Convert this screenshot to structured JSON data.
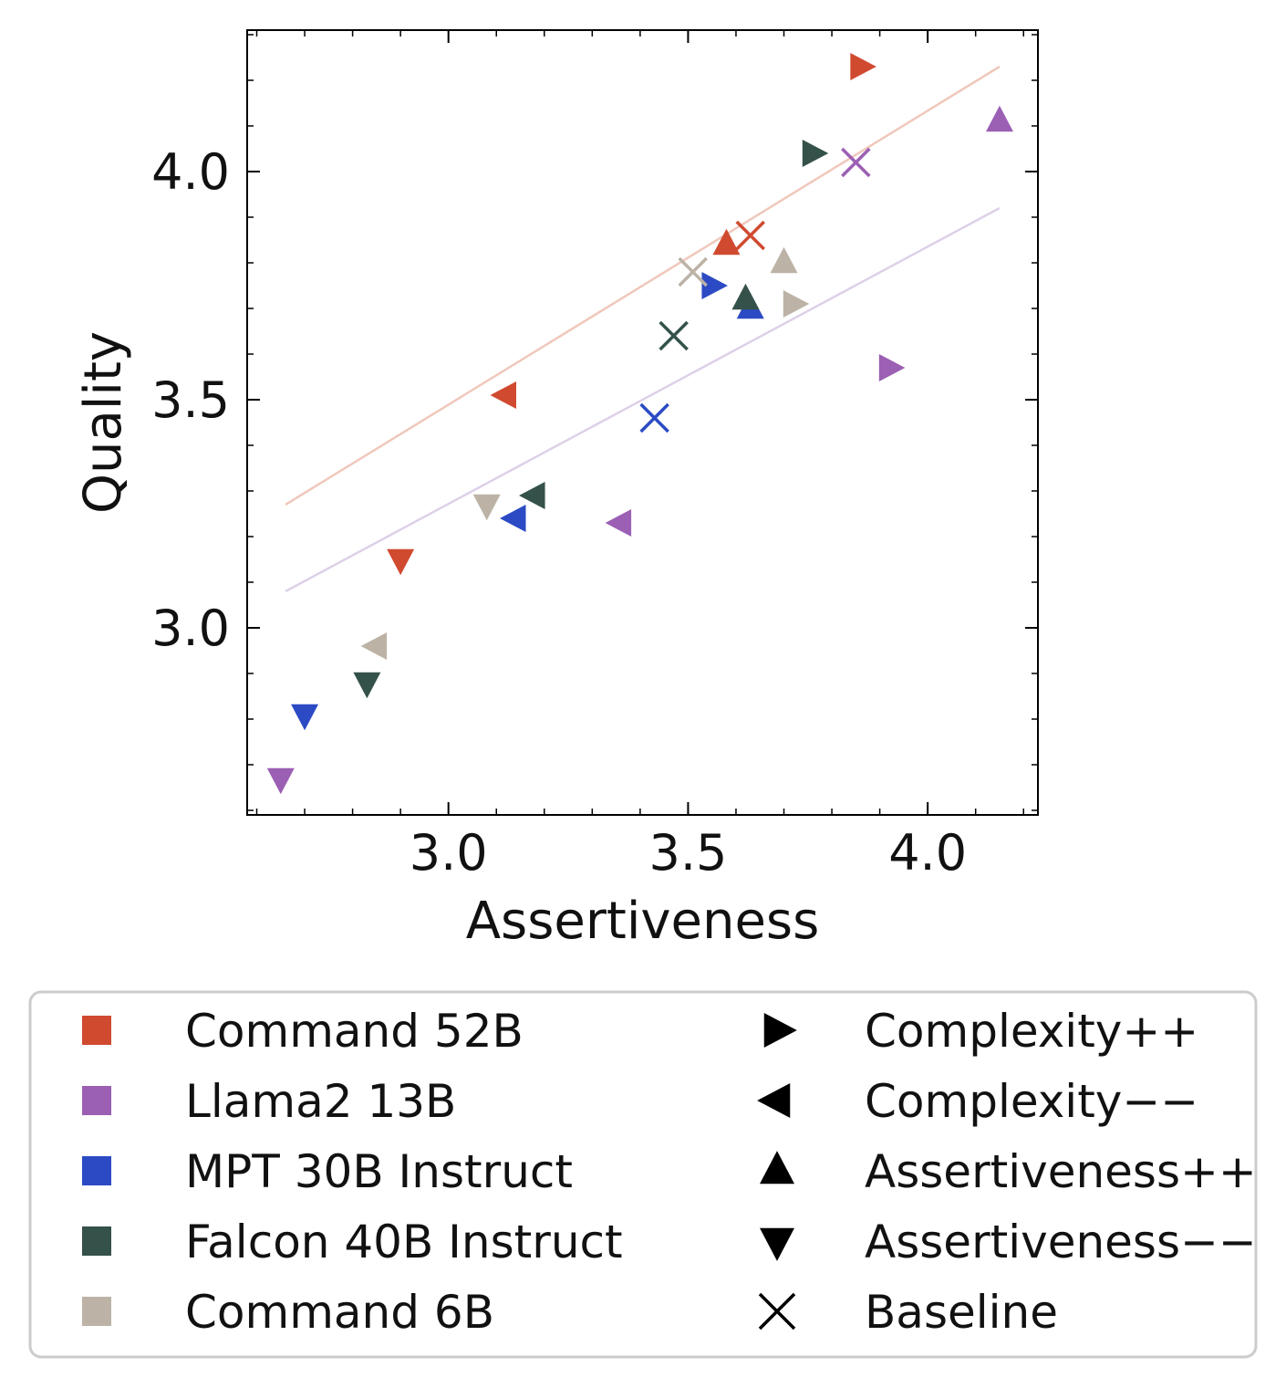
{
  "chart_data": {
    "type": "scatter",
    "xlabel": "Assertiveness",
    "ylabel": "Quality",
    "xlim": [
      2.58,
      4.23
    ],
    "ylim": [
      2.59,
      4.31
    ],
    "x_ticks": [
      3.0,
      3.5,
      4.0
    ],
    "x_tick_labels": [
      "3.0",
      "3.5",
      "4.0"
    ],
    "y_ticks": [
      3.0,
      3.5,
      4.0
    ],
    "y_tick_labels": [
      "3.0",
      "3.5",
      "4.0"
    ],
    "grid": false,
    "legend_position": "bottom",
    "models": [
      {
        "name": "Command 52B",
        "color": "#d04a30"
      },
      {
        "name": "Llama2 13B",
        "color": "#9b5fb4"
      },
      {
        "name": "MPT 30B Instruct",
        "color": "#2b4ac4"
      },
      {
        "name": "Falcon 40B Instruct",
        "color": "#34514a"
      },
      {
        "name": "Command 6B",
        "color": "#bcb3a6"
      }
    ],
    "variants": [
      {
        "name": "Complexity++",
        "marker": "triangle-right"
      },
      {
        "name": "Complexity−−",
        "marker": "triangle-left"
      },
      {
        "name": "Assertiveness++",
        "marker": "triangle-up"
      },
      {
        "name": "Assertiveness−−",
        "marker": "triangle-down"
      },
      {
        "name": "Baseline",
        "marker": "x"
      }
    ],
    "points": [
      {
        "model": 0,
        "variant": 0,
        "x": 3.86,
        "y": 4.23
      },
      {
        "model": 0,
        "variant": 1,
        "x": 3.12,
        "y": 3.51
      },
      {
        "model": 0,
        "variant": 2,
        "x": 3.58,
        "y": 3.84
      },
      {
        "model": 0,
        "variant": 3,
        "x": 2.9,
        "y": 3.15
      },
      {
        "model": 0,
        "variant": 4,
        "x": 3.63,
        "y": 3.86
      },
      {
        "model": 1,
        "variant": 0,
        "x": 3.92,
        "y": 3.57
      },
      {
        "model": 1,
        "variant": 1,
        "x": 3.36,
        "y": 3.23
      },
      {
        "model": 1,
        "variant": 2,
        "x": 4.15,
        "y": 4.11
      },
      {
        "model": 1,
        "variant": 3,
        "x": 2.65,
        "y": 2.67
      },
      {
        "model": 1,
        "variant": 4,
        "x": 3.85,
        "y": 4.02
      },
      {
        "model": 2,
        "variant": 0,
        "x": 3.55,
        "y": 3.75
      },
      {
        "model": 2,
        "variant": 1,
        "x": 3.14,
        "y": 3.24
      },
      {
        "model": 2,
        "variant": 2,
        "x": 3.63,
        "y": 3.7
      },
      {
        "model": 2,
        "variant": 3,
        "x": 2.7,
        "y": 2.81
      },
      {
        "model": 2,
        "variant": 4,
        "x": 3.43,
        "y": 3.46
      },
      {
        "model": 3,
        "variant": 0,
        "x": 3.76,
        "y": 4.04
      },
      {
        "model": 3,
        "variant": 1,
        "x": 3.18,
        "y": 3.29
      },
      {
        "model": 3,
        "variant": 2,
        "x": 3.62,
        "y": 3.72
      },
      {
        "model": 3,
        "variant": 3,
        "x": 2.83,
        "y": 2.88
      },
      {
        "model": 3,
        "variant": 4,
        "x": 3.47,
        "y": 3.64
      },
      {
        "model": 4,
        "variant": 0,
        "x": 3.72,
        "y": 3.71
      },
      {
        "model": 4,
        "variant": 1,
        "x": 2.85,
        "y": 2.96
      },
      {
        "model": 4,
        "variant": 2,
        "x": 3.7,
        "y": 3.8
      },
      {
        "model": 4,
        "variant": 3,
        "x": 3.08,
        "y": 3.27
      },
      {
        "model": 4,
        "variant": 4,
        "x": 3.51,
        "y": 3.78
      }
    ],
    "trend_lines": [
      {
        "color": "#f0c8bc",
        "x": [
          2.66,
          4.15
        ],
        "y": [
          3.27,
          4.23
        ]
      },
      {
        "color": "#ddd0e8",
        "x": [
          2.66,
          4.15
        ],
        "y": [
          3.08,
          3.92
        ]
      }
    ]
  }
}
